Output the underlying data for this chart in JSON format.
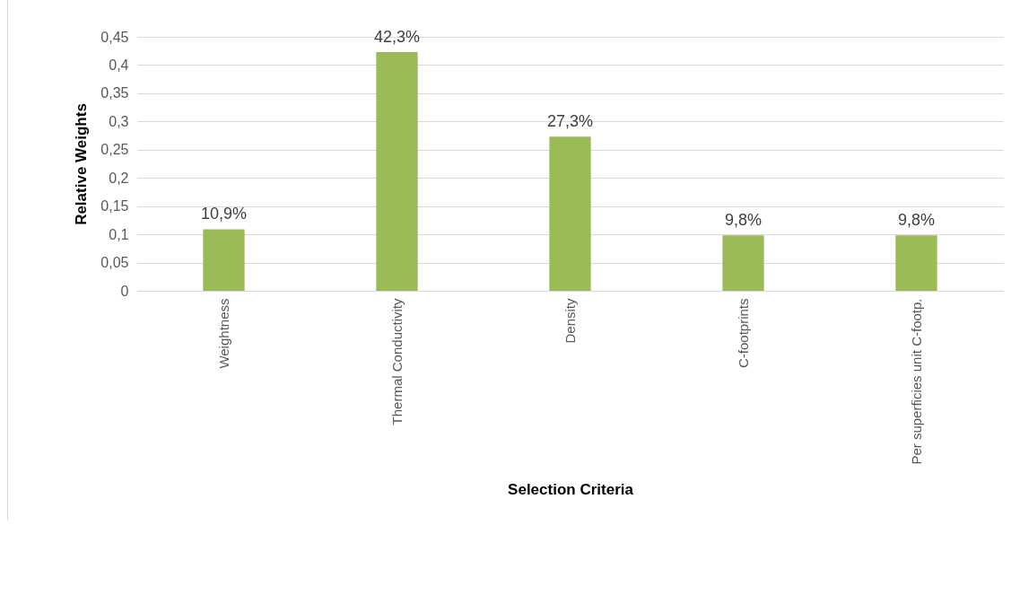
{
  "chart_data": {
    "type": "bar",
    "xlabel": "Selection Criteria",
    "ylabel": "Relative Weights",
    "categories": [
      "Weightness",
      "Thermal Conductivity",
      "Density",
      "C-footprints",
      "Per superficies unit C-footp."
    ],
    "values": [
      0.109,
      0.423,
      0.273,
      0.098,
      0.098
    ],
    "value_labels": [
      "10,9%",
      "42,3%",
      "27,3%",
      "9,8%",
      "9,8%"
    ],
    "color": "#9bbb59",
    "ylim": [
      0,
      0.45
    ],
    "yticks": [
      {
        "value": 0,
        "label": "0"
      },
      {
        "value": 0.05,
        "label": "0,05"
      },
      {
        "value": 0.1,
        "label": "0,1"
      },
      {
        "value": 0.15,
        "label": "0,15"
      },
      {
        "value": 0.2,
        "label": "0,2"
      },
      {
        "value": 0.25,
        "label": "0,25"
      },
      {
        "value": 0.3,
        "label": "0,3"
      },
      {
        "value": 0.35,
        "label": "0,35"
      },
      {
        "value": 0.4,
        "label": "0,4"
      },
      {
        "value": 0.45,
        "label": "0,45"
      }
    ],
    "grid": "y"
  }
}
